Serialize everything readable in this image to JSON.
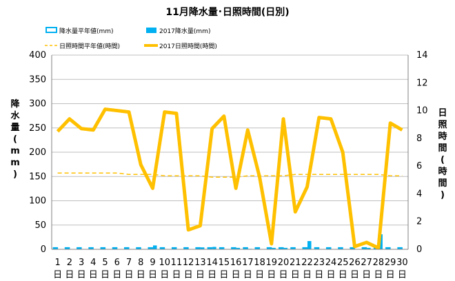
{
  "chart_data": {
    "type": "bar",
    "title": "11月降水量･日照時間(日別)",
    "ylabel": "降水量(mm)",
    "y2label": "日照時間(時間)",
    "categories": [
      "1",
      "2",
      "3",
      "4",
      "5",
      "6",
      "7",
      "8",
      "9",
      "10",
      "11",
      "12",
      "13",
      "14",
      "15",
      "16",
      "17",
      "18",
      "19",
      "20",
      "21",
      "22",
      "23",
      "24",
      "25",
      "26",
      "27",
      "28",
      "29",
      "30"
    ],
    "xtick_suffix": "日",
    "ylim": [
      0,
      400
    ],
    "yticks": [
      0,
      50,
      100,
      150,
      200,
      250,
      300,
      350,
      400
    ],
    "y2lim": [
      0,
      14
    ],
    "y2ticks": [
      0,
      2,
      4,
      6,
      8,
      10,
      12,
      14
    ],
    "grid": true,
    "legend_position": "top",
    "series": [
      {
        "name": "降水量平年値(mm)",
        "kind": "bar-outline",
        "axis": "left",
        "color": "#00b0f0",
        "values": [
          3,
          3,
          3,
          3,
          3,
          3,
          3,
          3,
          3,
          3,
          3,
          3,
          3,
          3,
          3,
          3,
          3,
          3,
          3,
          3,
          3,
          3,
          3,
          3,
          3,
          3,
          3,
          3,
          3,
          3
        ]
      },
      {
        "name": "2017降水量(mm)",
        "kind": "bar",
        "axis": "left",
        "color": "#00b0f0",
        "values": [
          0,
          0,
          0,
          0,
          0,
          0,
          0,
          0,
          8,
          0.5,
          0,
          0.5,
          4,
          5,
          0,
          3,
          1,
          0,
          3,
          3,
          0,
          17,
          0.5,
          0,
          0,
          0,
          3,
          31,
          0,
          0
        ]
      },
      {
        "name": "日照時間平年値(時間)",
        "kind": "dashed-line",
        "axis": "right",
        "color": "#ffc000",
        "values": [
          5.5,
          5.5,
          5.5,
          5.5,
          5.5,
          5.5,
          5.4,
          5.4,
          5.4,
          5.3,
          5.3,
          5.3,
          5.3,
          5.2,
          5.2,
          5.2,
          5.3,
          5.3,
          5.3,
          5.3,
          5.4,
          5.4,
          5.4,
          5.4,
          5.4,
          5.4,
          5.4,
          5.4,
          5.3,
          5.3
        ]
      },
      {
        "name": "2017日照時間(時間)",
        "kind": "line",
        "axis": "right",
        "color": "#ffc000",
        "values": [
          8.5,
          9.4,
          8.7,
          8.6,
          10.1,
          10.0,
          9.9,
          6.1,
          4.4,
          9.9,
          9.8,
          1.4,
          1.7,
          8.7,
          9.6,
          4.4,
          8.6,
          5.2,
          0.4,
          9.4,
          2.7,
          4.5,
          9.5,
          9.4,
          7.0,
          0.2,
          0.5,
          0.1,
          9.1,
          8.6
        ]
      }
    ]
  }
}
